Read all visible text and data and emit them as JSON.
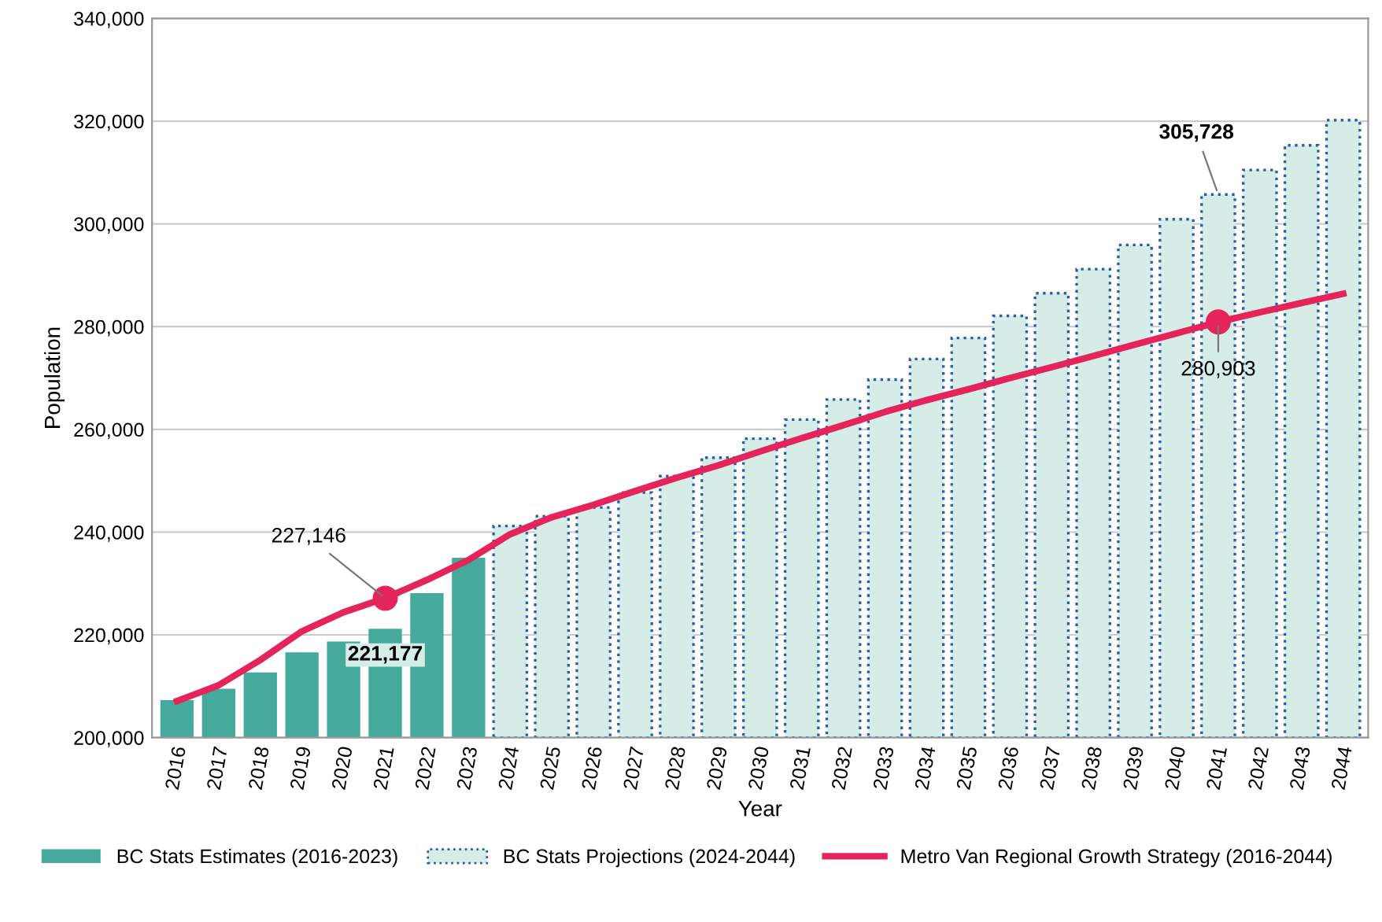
{
  "chart_data": {
    "type": "bar",
    "xlabel": "Year",
    "ylabel": "Population",
    "categories": [
      "2016",
      "2017",
      "2018",
      "2019",
      "2020",
      "2021",
      "2022",
      "2023",
      "2024",
      "2025",
      "2026",
      "2027",
      "2028",
      "2029",
      "2030",
      "2031",
      "2032",
      "2033",
      "2034",
      "2035",
      "2036",
      "2037",
      "2038",
      "2039",
      "2040",
      "2041",
      "2042",
      "2043",
      "2044"
    ],
    "series": [
      {
        "name": "BC Stats Estimates (2016-2023)",
        "color": "#45aa9c",
        "values": [
          207300,
          209500,
          212700,
          216600,
          218700,
          221177,
          228100,
          235000,
          null,
          null,
          null,
          null,
          null,
          null,
          null,
          null,
          null,
          null,
          null,
          null,
          null,
          null,
          null,
          null,
          null,
          null,
          null,
          null,
          null
        ]
      },
      {
        "name": "BC Stats Projections (2024-2044)",
        "color": "#d5ece7",
        "line_style": "dotted",
        "values": [
          null,
          null,
          null,
          null,
          null,
          null,
          null,
          null,
          241200,
          243100,
          244800,
          247700,
          250900,
          254500,
          258200,
          261900,
          265800,
          269700,
          273700,
          277800,
          282100,
          286500,
          291200,
          295900,
          300900,
          305728,
          310500,
          315300,
          320200
        ]
      },
      {
        "name": "Metro Van Regional Growth Strategy (2016-2044)",
        "type": "line",
        "color": "#e4245a",
        "marker": "none",
        "values": [
          207100,
          210200,
          215100,
          220700,
          224400,
          227146,
          230700,
          234600,
          239600,
          242900,
          245300,
          248000,
          250600,
          253000,
          255700,
          258300,
          260800,
          263400,
          265700,
          267800,
          270000,
          272100,
          274300,
          276500,
          278700,
          280903,
          282800,
          284600,
          286400
        ]
      },
      {
        "type": "scatter",
        "color": "#e4245a",
        "marker": "circle",
        "values": [
          null,
          null,
          null,
          null,
          null,
          227146,
          null,
          null,
          null,
          null,
          null,
          null,
          null,
          null,
          null,
          null,
          null,
          null,
          null,
          null,
          null,
          null,
          null,
          null,
          null,
          280903,
          null,
          null,
          null
        ]
      }
    ],
    "annotations": [
      {
        "text": "227,146",
        "x": "2021",
        "y": 227146
      },
      {
        "text": "221,177",
        "x": "2021",
        "y": 221177
      },
      {
        "text": "305,728",
        "x": "2041",
        "y": 305728
      },
      {
        "text": "280,903",
        "x": "2041",
        "y": 280903
      }
    ],
    "ylim": [
      200000,
      340000
    ],
    "yticks": [
      {
        "value": 200000,
        "label": "200,000"
      },
      {
        "value": 220000,
        "label": "220,000"
      },
      {
        "value": 240000,
        "label": "240,000"
      },
      {
        "value": 260000,
        "label": "260,000"
      },
      {
        "value": 280000,
        "label": "280,000"
      },
      {
        "value": 300000,
        "label": "300,000"
      },
      {
        "value": 320000,
        "label": "320,000"
      },
      {
        "value": 340000,
        "label": "340,000"
      }
    ],
    "grid": "y",
    "legend": "bottom"
  }
}
